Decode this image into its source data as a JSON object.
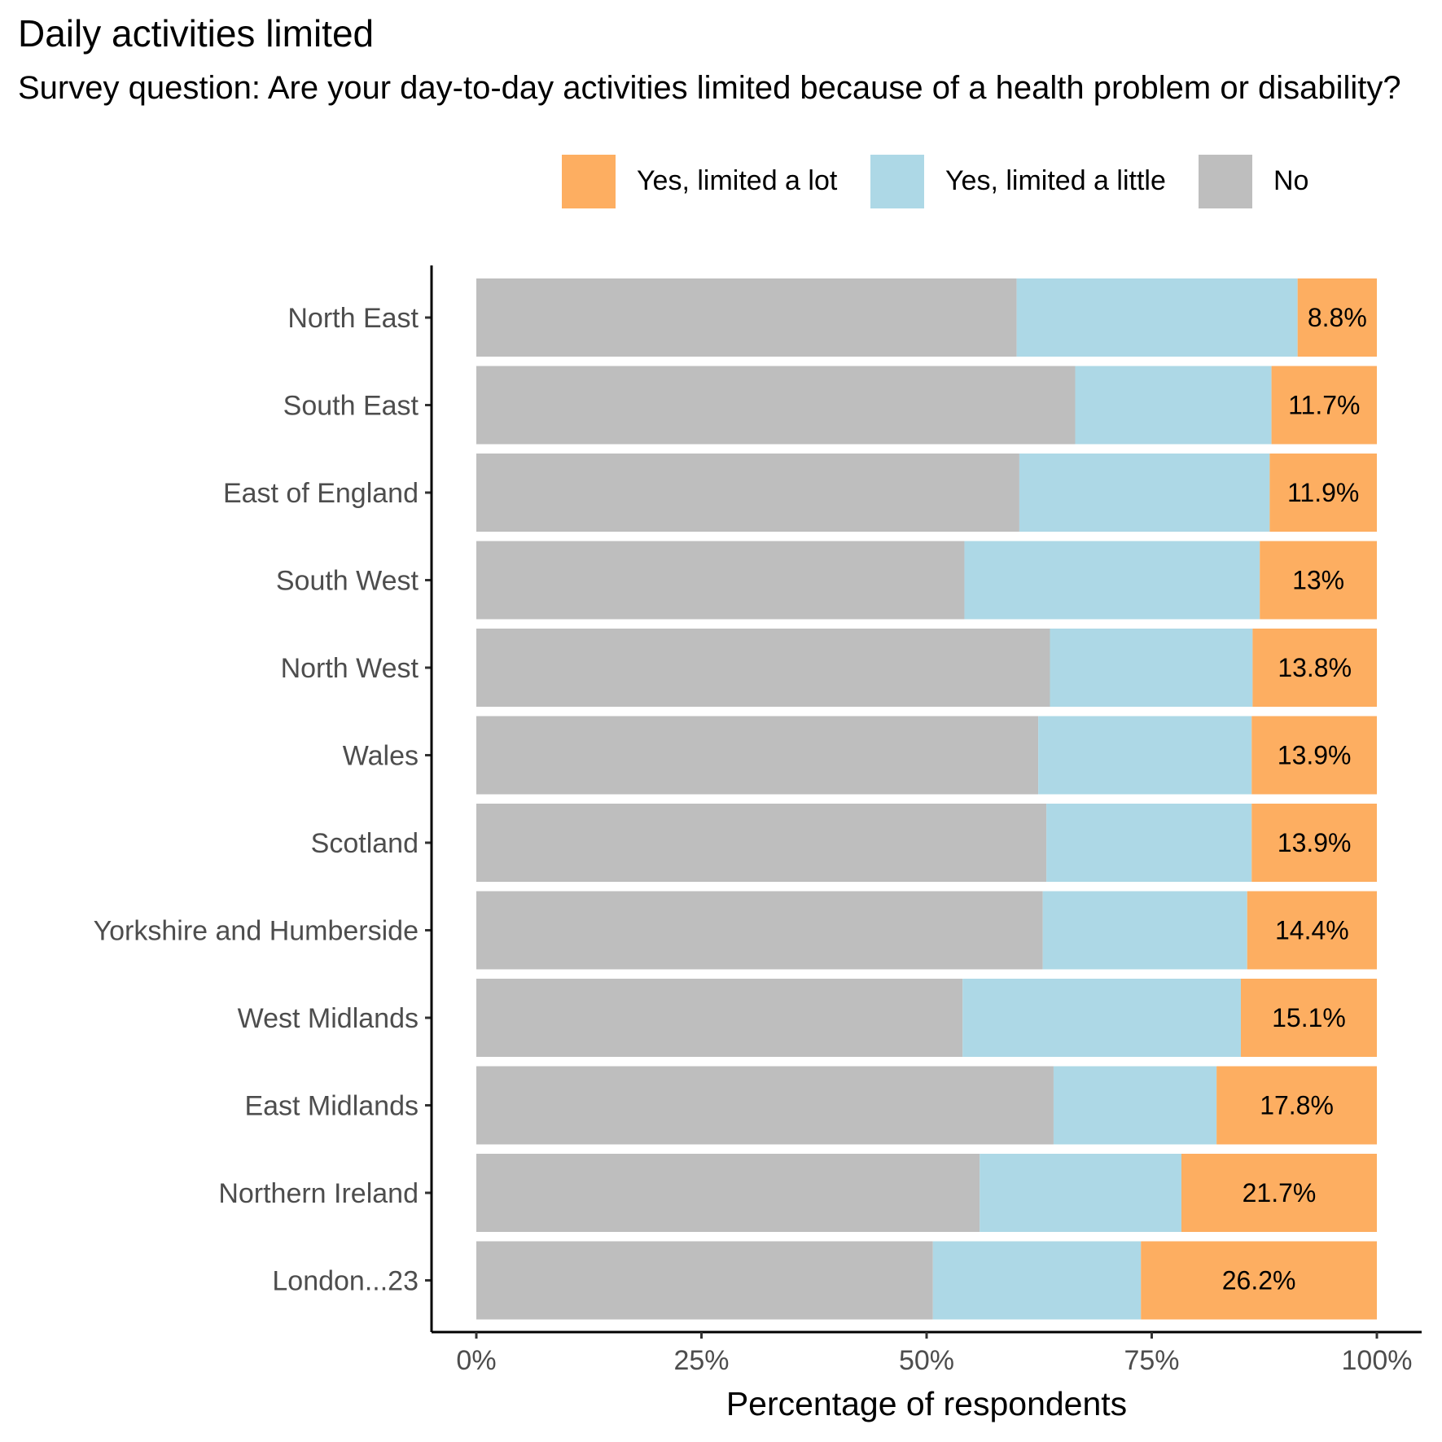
{
  "chart_data": {
    "type": "bar",
    "orientation": "horizontal",
    "stacked": true,
    "title": "Daily activities limited",
    "subtitle": "Survey question: Are your day-to-day activities limited because of a health problem or disability?",
    "xlabel": "Percentage of respondents",
    "ylabel": "",
    "xlim": [
      0,
      100
    ],
    "x_ticks": [
      "0%",
      "25%",
      "50%",
      "75%",
      "100%"
    ],
    "x_tick_values": [
      0,
      25,
      50,
      75,
      100
    ],
    "legend_position": "top",
    "categories": [
      "North East",
      "South East",
      "East of England",
      "South West",
      "North West",
      "Wales",
      "Scotland",
      "Yorkshire and Humberside",
      "West Midlands",
      "East Midlands",
      "Northern Ireland",
      "London...23"
    ],
    "series": [
      {
        "name": "No",
        "color": "#bebebe",
        "values": [
          60.0,
          66.5,
          60.3,
          54.2,
          63.7,
          62.4,
          63.3,
          62.9,
          54.0,
          64.1,
          55.9,
          50.7
        ]
      },
      {
        "name": "Yes, limited a little",
        "color": "#add8e6",
        "values": [
          31.2,
          21.8,
          27.8,
          32.8,
          22.5,
          23.7,
          22.8,
          22.7,
          30.9,
          18.1,
          22.4,
          23.1
        ]
      },
      {
        "name": "Yes, limited a lot",
        "color": "#fdae61",
        "values": [
          8.8,
          11.7,
          11.9,
          13.0,
          13.8,
          13.9,
          13.9,
          14.4,
          15.1,
          17.8,
          21.7,
          26.2
        ]
      }
    ],
    "data_labels": [
      "8.8%",
      "11.7%",
      "11.9%",
      "13%",
      "13.8%",
      "13.9%",
      "13.9%",
      "14.4%",
      "15.1%",
      "17.8%",
      "21.7%",
      "26.2%"
    ]
  },
  "legend": {
    "items": [
      {
        "label": "Yes, limited a lot",
        "color": "#fdae61"
      },
      {
        "label": "Yes, limited a little",
        "color": "#add8e6"
      },
      {
        "label": "No",
        "color": "#bebebe"
      }
    ]
  }
}
